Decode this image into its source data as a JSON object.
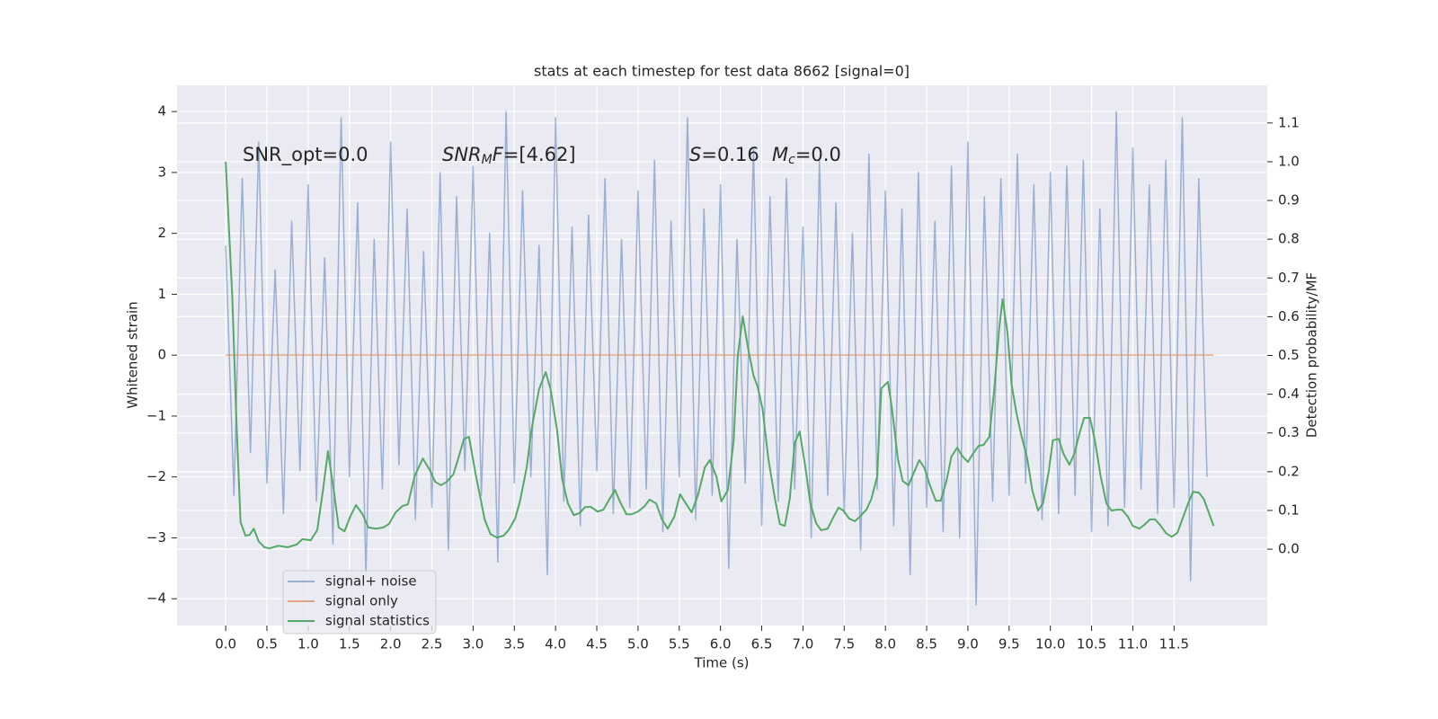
{
  "chart_data": {
    "type": "line",
    "title": "stats at each timestep for test data 8662 [signal=0]",
    "xlabel": "Time (s)",
    "ylabel": "Whitened strain",
    "y2label": "Detection probability/MF",
    "grid": true,
    "legend": "lower left",
    "xlim": [
      -0.59,
      12.63
    ],
    "ylim": [
      -4.44,
      4.43
    ],
    "y2lim": [
      -0.197,
      1.197
    ],
    "xticks": [
      {
        "value": 0,
        "label": "0.0"
      },
      {
        "value": 0.5,
        "label": "0.5"
      },
      {
        "value": 1,
        "label": "1.0"
      },
      {
        "value": 1.5,
        "label": "1.5"
      },
      {
        "value": 2,
        "label": "2.0"
      },
      {
        "value": 2.5,
        "label": "2.5"
      },
      {
        "value": 3,
        "label": "3.0"
      },
      {
        "value": 3.5,
        "label": "3.5"
      },
      {
        "value": 4,
        "label": "4.0"
      },
      {
        "value": 4.5,
        "label": "4.5"
      },
      {
        "value": 5,
        "label": "5.0"
      },
      {
        "value": 5.5,
        "label": "5.5"
      },
      {
        "value": 6,
        "label": "6.0"
      },
      {
        "value": 6.5,
        "label": "6.5"
      },
      {
        "value": 7,
        "label": "7.0"
      },
      {
        "value": 7.5,
        "label": "7.5"
      },
      {
        "value": 8,
        "label": "8.0"
      },
      {
        "value": 8.5,
        "label": "8.5"
      },
      {
        "value": 9,
        "label": "9.0"
      },
      {
        "value": 9.5,
        "label": "9.5"
      },
      {
        "value": 10,
        "label": "10.0"
      },
      {
        "value": 10.5,
        "label": "10.5"
      },
      {
        "value": 11,
        "label": "11.0"
      },
      {
        "value": 11.5,
        "label": "11.5"
      }
    ],
    "yticks": [
      {
        "value": -4,
        "label": "−4"
      },
      {
        "value": -3,
        "label": "−3"
      },
      {
        "value": -2,
        "label": "−2"
      },
      {
        "value": -1,
        "label": "−1"
      },
      0,
      1,
      2,
      3,
      4
    ],
    "y2ticks": [
      {
        "value": 0,
        "label": "0.0"
      },
      {
        "value": 0.1,
        "label": "0.1"
      },
      {
        "value": 0.2,
        "label": "0.2"
      },
      {
        "value": 0.3,
        "label": "0.3"
      },
      {
        "value": 0.4,
        "label": "0.4"
      },
      {
        "value": 0.5,
        "label": "0.5"
      },
      {
        "value": 0.6,
        "label": "0.6"
      },
      {
        "value": 0.7,
        "label": "0.7"
      },
      {
        "value": 0.8,
        "label": "0.8"
      },
      {
        "value": 0.9,
        "label": "0.9"
      },
      {
        "value": 1,
        "label": "1.0"
      },
      {
        "value": 1.1,
        "label": "1.1"
      }
    ],
    "annotations": [
      {
        "segments": [
          {
            "text": "SNR_opt=0.0"
          }
        ]
      },
      {
        "segments": [
          {
            "text": "SNR",
            "italic": true
          },
          {
            "text": "M",
            "italic": true,
            "sub": true
          },
          {
            "text": "F",
            "italic": true
          },
          {
            "text": "=[4.62]"
          }
        ]
      },
      {
        "segments": [
          {
            "text": "S",
            "italic": true
          },
          {
            "text": "=0.16"
          }
        ]
      },
      {
        "segments": [
          {
            "text": "M",
            "italic": true
          },
          {
            "text": "c",
            "italic": true,
            "sub": true
          },
          {
            "text": "=0.0"
          }
        ]
      }
    ],
    "series": [
      {
        "name": "signal+ noise",
        "color": "#4c72b0",
        "alpha": 0.5,
        "x": [
          0,
          0.1,
          0.2,
          0.3,
          0.4,
          0.5,
          0.6,
          0.7,
          0.8,
          0.9,
          1,
          1.1,
          1.2,
          1.3,
          1.4,
          1.5,
          1.6,
          1.7,
          1.8,
          1.9,
          2,
          2.1,
          2.2,
          2.3,
          2.4,
          2.5,
          2.6,
          2.7,
          2.8,
          2.9,
          3,
          3.1,
          3.2,
          3.3,
          3.4,
          3.5,
          3.6,
          3.7,
          3.8,
          3.9,
          4,
          4.1,
          4.2,
          4.3,
          4.4,
          4.5,
          4.6,
          4.7,
          4.8,
          4.9,
          5,
          5.1,
          5.2,
          5.3,
          5.4,
          5.5,
          5.6,
          5.7,
          5.8,
          5.9,
          6,
          6.1,
          6.2,
          6.3,
          6.4,
          6.5,
          6.6,
          6.7,
          6.8,
          6.9,
          7,
          7.1,
          7.2,
          7.3,
          7.4,
          7.5,
          7.6,
          7.7,
          7.8,
          7.9,
          8,
          8.1,
          8.2,
          8.3,
          8.4,
          8.5,
          8.6,
          8.7,
          8.8,
          8.9,
          9,
          9.1,
          9.2,
          9.3,
          9.4,
          9.5,
          9.6,
          9.7,
          9.8,
          9.9,
          10,
          10.1,
          10.2,
          10.3,
          10.4,
          10.5,
          10.6,
          10.7,
          10.8,
          10.9,
          11,
          11.1,
          11.2,
          11.3,
          11.4,
          11.5,
          11.6,
          11.7,
          11.8,
          11.9
        ],
        "values": [
          1.8,
          -2.3,
          2.9,
          -1.6,
          3.5,
          -2.1,
          1.4,
          -2.6,
          2.2,
          -1.9,
          2.8,
          -2.4,
          1.6,
          -3.1,
          3.9,
          -2.0,
          2.5,
          -3.6,
          1.9,
          -2.2,
          3.5,
          -1.8,
          2.4,
          -2.7,
          1.7,
          -2.5,
          3.0,
          -3.2,
          2.6,
          -1.9,
          3.1,
          -2.3,
          2.0,
          -3.4,
          4.0,
          -2.1,
          2.7,
          -2.0,
          1.8,
          -3.6,
          3.9,
          -2.4,
          2.1,
          -2.8,
          2.3,
          -1.9,
          2.9,
          -2.6,
          1.9,
          -2.5,
          2.7,
          -2.2,
          3.2,
          -2.9,
          2.2,
          -2.0,
          3.9,
          -2.7,
          2.4,
          -2.3,
          2.8,
          -3.5,
          1.9,
          -2.1,
          3.4,
          -2.8,
          2.6,
          -2.4,
          2.9,
          -2.2,
          2.1,
          -3.0,
          3.2,
          -2.3,
          2.5,
          -2.6,
          2.0,
          -3.2,
          3.3,
          -2.2,
          2.7,
          -2.8,
          2.4,
          -3.6,
          3.0,
          -2.5,
          2.2,
          -2.9,
          3.1,
          -3.0,
          3.5,
          -4.1,
          2.6,
          -2.4,
          2.9,
          -2.3,
          3.3,
          -2.1,
          2.8,
          -2.7,
          3.0,
          -2.6,
          3.1,
          -2.3,
          3.2,
          -2.9,
          2.4,
          -2.8,
          4.0,
          -2.5,
          3.4,
          -2.2,
          2.8,
          -2.6,
          3.2,
          -2.5,
          3.9,
          -3.7,
          2.9,
          -2.0
        ]
      },
      {
        "name": "signal only",
        "color": "#dd8452",
        "alpha": 0.7,
        "x": [
          0,
          11.98
        ],
        "values": [
          0,
          0
        ]
      },
      {
        "name": "signal statistics",
        "color": "#55a868",
        "alpha": 1,
        "axis": "y2",
        "x": [
          0,
          0.08,
          0.13,
          0.18,
          0.24,
          0.29,
          0.34,
          0.4,
          0.47,
          0.53,
          0.64,
          0.75,
          0.86,
          0.93,
          1.03,
          1.11,
          1.18,
          1.24,
          1.31,
          1.37,
          1.44,
          1.51,
          1.58,
          1.66,
          1.73,
          1.82,
          1.91,
          1.98,
          2.06,
          2.14,
          2.21,
          2.29,
          2.39,
          2.47,
          2.54,
          2.61,
          2.68,
          2.76,
          2.82,
          2.89,
          2.95,
          3.03,
          3.14,
          3.21,
          3.29,
          3.37,
          3.43,
          3.51,
          3.57,
          3.65,
          3.71,
          3.8,
          3.88,
          3.94,
          4.02,
          4.08,
          4.15,
          4.22,
          4.29,
          4.36,
          4.43,
          4.51,
          4.58,
          4.65,
          4.72,
          4.78,
          4.86,
          4.92,
          5,
          5.08,
          5.14,
          5.22,
          5.29,
          5.36,
          5.44,
          5.51,
          5.58,
          5.65,
          5.73,
          5.81,
          5.87,
          5.95,
          6.01,
          6.09,
          6.16,
          6.21,
          6.27,
          6.33,
          6.4,
          6.45,
          6.51,
          6.58,
          6.66,
          6.72,
          6.78,
          6.84,
          6.9,
          6.96,
          7.03,
          7.09,
          7.16,
          7.22,
          7.3,
          7.36,
          7.43,
          7.49,
          7.56,
          7.63,
          7.69,
          7.77,
          7.83,
          7.9,
          7.95,
          8.03,
          8.08,
          8.15,
          8.21,
          8.28,
          8.34,
          8.41,
          8.47,
          8.54,
          8.61,
          8.67,
          8.74,
          8.8,
          8.87,
          8.93,
          9,
          9.06,
          9.13,
          9.19,
          9.26,
          9.32,
          9.38,
          9.42,
          9.48,
          9.53,
          9.59,
          9.65,
          9.72,
          9.78,
          9.85,
          9.91,
          9.98,
          10.03,
          10.1,
          10.16,
          10.23,
          10.29,
          10.36,
          10.41,
          10.48,
          10.54,
          10.61,
          10.68,
          10.74,
          10.81,
          10.87,
          10.94,
          11,
          11.08,
          11.14,
          11.21,
          11.27,
          11.34,
          11.4,
          11.47,
          11.54,
          11.6,
          11.67,
          11.73,
          11.8,
          11.86,
          11.92,
          11.98
        ],
        "values": [
          1.0,
          0.65,
          0.33,
          0.07,
          0.035,
          0.037,
          0.053,
          0.02,
          0.005,
          0.002,
          0.009,
          0.005,
          0.012,
          0.026,
          0.023,
          0.049,
          0.153,
          0.253,
          0.153,
          0.056,
          0.046,
          0.084,
          0.114,
          0.09,
          0.056,
          0.053,
          0.056,
          0.065,
          0.095,
          0.111,
          0.116,
          0.188,
          0.234,
          0.206,
          0.174,
          0.165,
          0.174,
          0.193,
          0.234,
          0.285,
          0.29,
          0.195,
          0.077,
          0.039,
          0.03,
          0.035,
          0.049,
          0.079,
          0.125,
          0.211,
          0.311,
          0.413,
          0.457,
          0.413,
          0.304,
          0.181,
          0.118,
          0.088,
          0.093,
          0.109,
          0.109,
          0.097,
          0.102,
          0.128,
          0.153,
          0.123,
          0.09,
          0.09,
          0.097,
          0.111,
          0.128,
          0.118,
          0.077,
          0.053,
          0.084,
          0.142,
          0.118,
          0.095,
          0.142,
          0.211,
          0.23,
          0.188,
          0.123,
          0.153,
          0.281,
          0.501,
          0.601,
          0.524,
          0.448,
          0.42,
          0.362,
          0.234,
          0.13,
          0.065,
          0.06,
          0.13,
          0.274,
          0.304,
          0.211,
          0.118,
          0.067,
          0.049,
          0.053,
          0.079,
          0.107,
          0.1,
          0.079,
          0.072,
          0.084,
          0.102,
          0.13,
          0.188,
          0.415,
          0.432,
          0.362,
          0.234,
          0.176,
          0.165,
          0.195,
          0.23,
          0.211,
          0.165,
          0.125,
          0.125,
          0.176,
          0.239,
          0.262,
          0.241,
          0.225,
          0.246,
          0.267,
          0.269,
          0.29,
          0.413,
          0.571,
          0.645,
          0.559,
          0.425,
          0.35,
          0.292,
          0.234,
          0.153,
          0.1,
          0.118,
          0.2,
          0.281,
          0.285,
          0.246,
          0.218,
          0.246,
          0.304,
          0.339,
          0.339,
          0.281,
          0.188,
          0.118,
          0.1,
          0.102,
          0.102,
          0.084,
          0.06,
          0.053,
          0.063,
          0.077,
          0.077,
          0.06,
          0.042,
          0.032,
          0.042,
          0.077,
          0.118,
          0.148,
          0.146,
          0.13,
          0.095,
          0.06
        ]
      }
    ]
  }
}
